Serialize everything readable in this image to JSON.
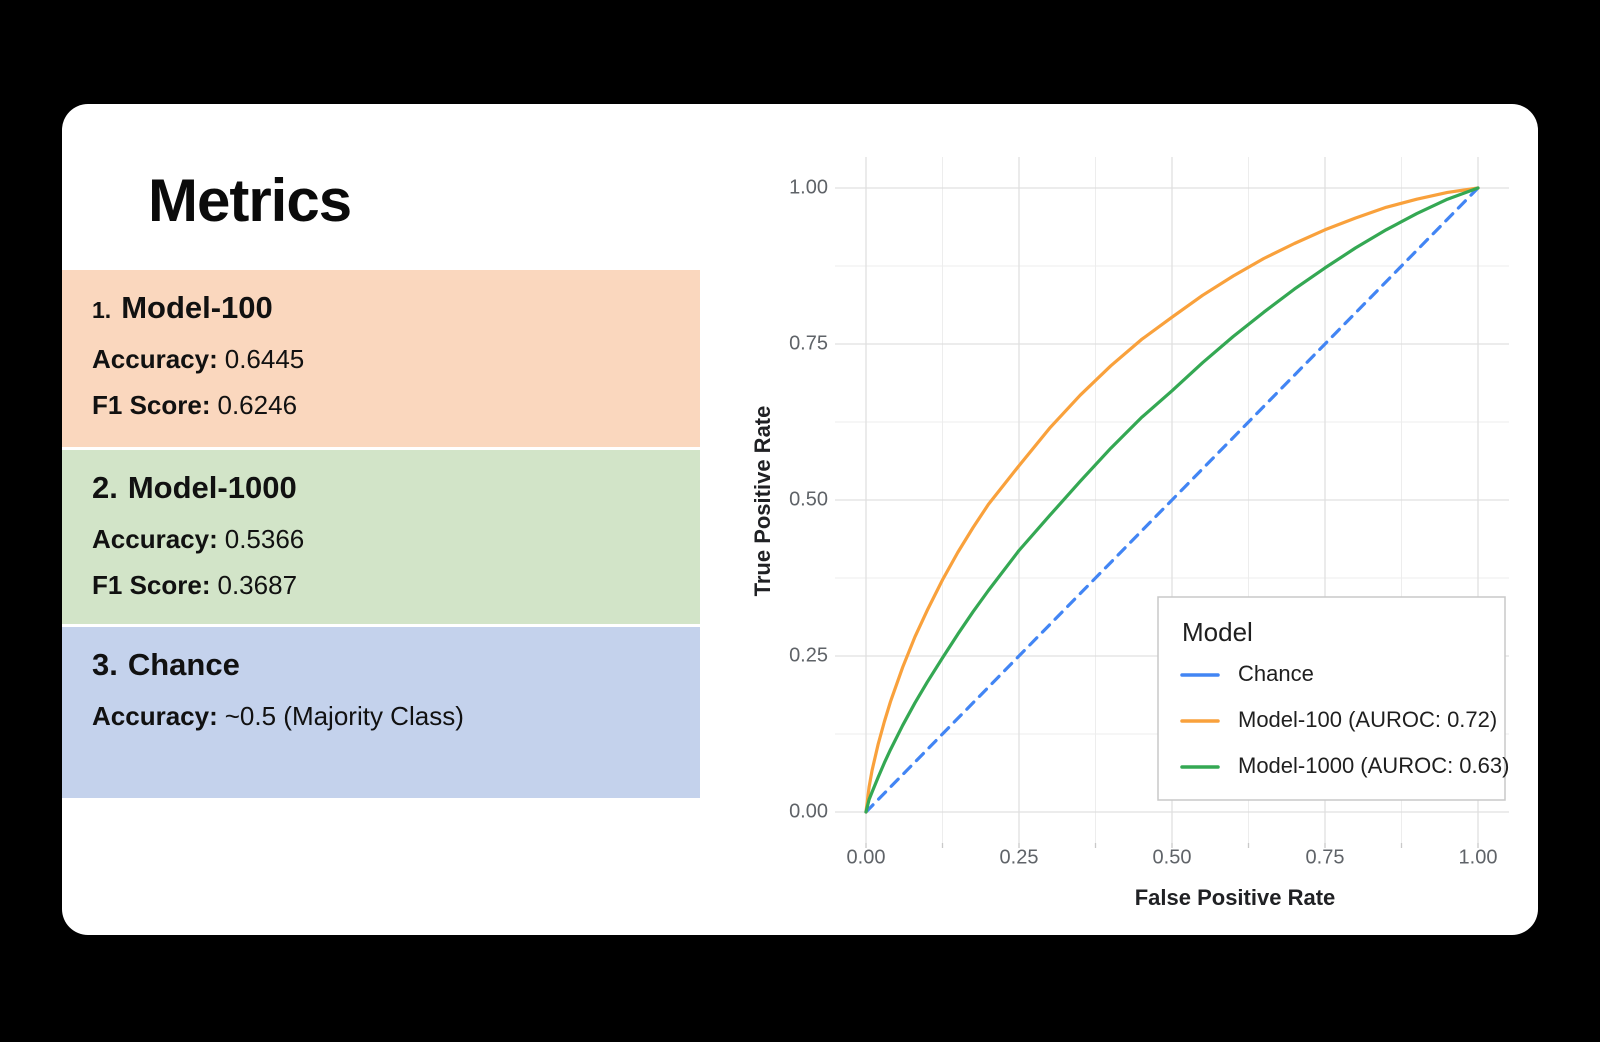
{
  "card": {
    "title": "Metrics",
    "metrics": [
      {
        "number": "1.",
        "name": "Model-100",
        "bg": "#FAD7BE",
        "lines": [
          {
            "label": "Accuracy:",
            "value": "0.6445"
          },
          {
            "label": "F1 Score:",
            "value": "0.6246"
          }
        ]
      },
      {
        "number": "2.",
        "name": "Model-1000",
        "bg": "#D2E4C8",
        "lines": [
          {
            "label": "Accuracy:",
            "value": "0.5366"
          },
          {
            "label": "F1 Score:",
            "value": "0.3687"
          }
        ]
      },
      {
        "number": "3.",
        "name": "Chance",
        "bg": "#C4D2EC",
        "lines": [
          {
            "label": "Accuracy:",
            "value": "~0.5 (Majority Class)"
          }
        ]
      }
    ]
  },
  "chart_data": {
    "type": "line",
    "title": "",
    "xlabel": "False Positive Rate",
    "ylabel": "True Positive Rate",
    "xlim": [
      0,
      1
    ],
    "ylim": [
      0,
      1
    ],
    "grid": {
      "major_color": "#e0e0e0",
      "minor_color": "#ededed",
      "tick_mark_color": "#c9c9c9",
      "minor_values": [
        0.125,
        0.375,
        0.625,
        0.875
      ],
      "tick_mark_values": [
        0,
        0.125,
        0.25,
        0.375,
        0.5,
        0.625,
        0.75,
        0.875,
        1
      ]
    },
    "x_axis": {
      "ticks": [
        {
          "value": 0,
          "label": "0.00"
        },
        {
          "value": 0.25,
          "label": "0.25"
        },
        {
          "value": 0.5,
          "label": "0.50"
        },
        {
          "value": 0.75,
          "label": "0.75"
        },
        {
          "value": 1,
          "label": "1.00"
        }
      ]
    },
    "y_axis": {
      "ticks": [
        {
          "value": 0,
          "label": "0.00"
        },
        {
          "value": 0.25,
          "label": "0.25"
        },
        {
          "value": 0.5,
          "label": "0.50"
        },
        {
          "value": 0.75,
          "label": "0.75"
        },
        {
          "value": 1,
          "label": "1.00"
        }
      ]
    },
    "legend": {
      "title": "Model",
      "position": "bottom-right",
      "border_color": "#c8c8c8",
      "background": "#ffffff"
    },
    "series": [
      {
        "name": "Chance",
        "color": "#4285F4",
        "dashed": true,
        "points": [
          [
            0,
            0
          ],
          [
            1,
            1
          ]
        ]
      },
      {
        "name": "Model-100 (AUROC: 0.72)",
        "color": "#F9A13C",
        "dashed": false,
        "points": [
          [
            0,
            0
          ],
          [
            0.005,
            0.04
          ],
          [
            0.01,
            0.067
          ],
          [
            0.02,
            0.109
          ],
          [
            0.03,
            0.145
          ],
          [
            0.04,
            0.177
          ],
          [
            0.06,
            0.232
          ],
          [
            0.08,
            0.281
          ],
          [
            0.1,
            0.323
          ],
          [
            0.125,
            0.372
          ],
          [
            0.15,
            0.416
          ],
          [
            0.175,
            0.456
          ],
          [
            0.2,
            0.493
          ],
          [
            0.25,
            0.555
          ],
          [
            0.3,
            0.615
          ],
          [
            0.35,
            0.668
          ],
          [
            0.4,
            0.715
          ],
          [
            0.45,
            0.757
          ],
          [
            0.5,
            0.793
          ],
          [
            0.55,
            0.828
          ],
          [
            0.6,
            0.859
          ],
          [
            0.65,
            0.887
          ],
          [
            0.7,
            0.911
          ],
          [
            0.75,
            0.933
          ],
          [
            0.8,
            0.952
          ],
          [
            0.85,
            0.969
          ],
          [
            0.9,
            0.982
          ],
          [
            0.95,
            0.993
          ],
          [
            1,
            1
          ]
        ]
      },
      {
        "name": "Model-1000 (AUROC: 0.63)",
        "color": "#34A853",
        "dashed": false,
        "points": [
          [
            0,
            0
          ],
          [
            0.005,
            0.02
          ],
          [
            0.01,
            0.032
          ],
          [
            0.02,
            0.056
          ],
          [
            0.03,
            0.079
          ],
          [
            0.04,
            0.1
          ],
          [
            0.06,
            0.139
          ],
          [
            0.08,
            0.175
          ],
          [
            0.1,
            0.208
          ],
          [
            0.125,
            0.247
          ],
          [
            0.15,
            0.285
          ],
          [
            0.175,
            0.321
          ],
          [
            0.2,
            0.355
          ],
          [
            0.25,
            0.419
          ],
          [
            0.3,
            0.475
          ],
          [
            0.35,
            0.53
          ],
          [
            0.4,
            0.583
          ],
          [
            0.45,
            0.632
          ],
          [
            0.5,
            0.675
          ],
          [
            0.55,
            0.72
          ],
          [
            0.6,
            0.762
          ],
          [
            0.65,
            0.801
          ],
          [
            0.7,
            0.838
          ],
          [
            0.75,
            0.872
          ],
          [
            0.8,
            0.904
          ],
          [
            0.85,
            0.933
          ],
          [
            0.9,
            0.959
          ],
          [
            0.95,
            0.982
          ],
          [
            1,
            1
          ]
        ]
      }
    ]
  }
}
